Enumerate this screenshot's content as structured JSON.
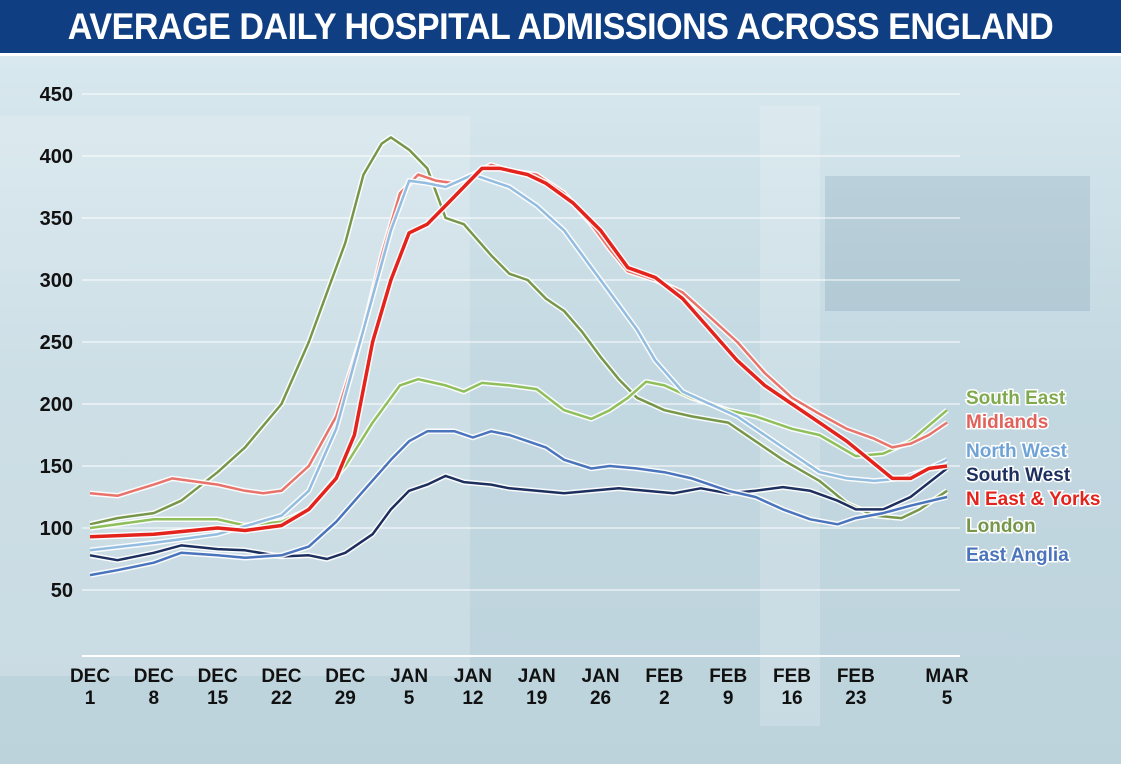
{
  "title": "AVERAGE DAILY HOSPITAL ADMISSIONS ACROSS ENGLAND",
  "chart_data": {
    "type": "line",
    "title": "AVERAGE DAILY HOSPITAL ADMISSIONS ACROSS ENGLAND",
    "xlabel": "",
    "ylabel": "",
    "x_unit": "days since Dec 1",
    "xlim": [
      0,
      94
    ],
    "ylim": [
      50,
      450
    ],
    "grid": true,
    "legend_placement": "right",
    "yticks": [
      50,
      100,
      150,
      200,
      250,
      300,
      350,
      400,
      450
    ],
    "xticks": [
      {
        "day": 0,
        "month": "DEC",
        "date": "1"
      },
      {
        "day": 7,
        "month": "DEC",
        "date": "8"
      },
      {
        "day": 14,
        "month": "DEC",
        "date": "15"
      },
      {
        "day": 21,
        "month": "DEC",
        "date": "22"
      },
      {
        "day": 28,
        "month": "DEC",
        "date": "29"
      },
      {
        "day": 35,
        "month": "JAN",
        "date": "5"
      },
      {
        "day": 42,
        "month": "JAN",
        "date": "12"
      },
      {
        "day": 49,
        "month": "JAN",
        "date": "19"
      },
      {
        "day": 56,
        "month": "JAN",
        "date": "26"
      },
      {
        "day": 63,
        "month": "FEB",
        "date": "2"
      },
      {
        "day": 70,
        "month": "FEB",
        "date": "9"
      },
      {
        "day": 77,
        "month": "FEB",
        "date": "16"
      },
      {
        "day": 84,
        "month": "FEB",
        "date": "23"
      },
      {
        "day": 94,
        "month": "MAR",
        "date": "5"
      }
    ],
    "series": [
      {
        "name": "London",
        "color": "#76974a",
        "width": 2.5,
        "x": [
          0,
          3,
          7,
          10,
          14,
          17,
          21,
          24,
          26,
          28,
          30,
          32,
          33,
          35,
          37,
          39,
          41,
          44,
          46,
          48,
          50,
          52,
          54,
          56,
          58,
          60,
          63,
          66,
          70,
          73,
          76,
          80,
          83,
          86,
          89,
          91,
          94
        ],
        "y": [
          103,
          108,
          112,
          122,
          145,
          165,
          200,
          250,
          290,
          330,
          385,
          410,
          415,
          405,
          390,
          350,
          345,
          320,
          305,
          300,
          285,
          275,
          258,
          238,
          220,
          205,
          195,
          190,
          185,
          170,
          155,
          138,
          120,
          110,
          108,
          115,
          130
        ]
      },
      {
        "name": "South East",
        "color": "#8fbf5a",
        "width": 2.5,
        "x": [
          0,
          7,
          14,
          17,
          21,
          24,
          28,
          31,
          34,
          36,
          39,
          41,
          43,
          46,
          49,
          52,
          55,
          57,
          59,
          61,
          63,
          66,
          70,
          73,
          77,
          80,
          84,
          87,
          90,
          94
        ],
        "y": [
          100,
          107,
          107,
          102,
          105,
          115,
          150,
          185,
          215,
          220,
          215,
          210,
          217,
          215,
          212,
          195,
          188,
          195,
          205,
          218,
          215,
          205,
          195,
          190,
          180,
          175,
          158,
          160,
          170,
          195
        ]
      },
      {
        "name": "Midlands",
        "color": "#e8736b",
        "width": 2.5,
        "x": [
          0,
          3,
          7,
          9,
          12,
          14,
          17,
          19,
          21,
          24,
          27,
          30,
          32,
          34,
          36,
          38,
          40,
          42,
          44,
          46,
          49,
          52,
          55,
          57,
          59,
          62,
          65,
          68,
          71,
          74,
          77,
          80,
          83,
          86,
          88,
          90,
          92,
          94
        ],
        "y": [
          128,
          126,
          135,
          140,
          137,
          135,
          130,
          128,
          130,
          150,
          190,
          260,
          320,
          370,
          385,
          380,
          378,
          385,
          393,
          388,
          385,
          370,
          345,
          325,
          307,
          300,
          290,
          270,
          250,
          225,
          205,
          192,
          180,
          172,
          165,
          168,
          175,
          185
        ]
      },
      {
        "name": "North West",
        "color": "#92bce0",
        "width": 2.5,
        "x": [
          0,
          7,
          14,
          21,
          24,
          27,
          30,
          33,
          35,
          37,
          39,
          42,
          44,
          46,
          49,
          52,
          55,
          57,
          60,
          62,
          65,
          68,
          71,
          74,
          77,
          80,
          83,
          86,
          89,
          92,
          94
        ],
        "y": [
          82,
          88,
          95,
          110,
          130,
          180,
          260,
          340,
          380,
          378,
          375,
          385,
          380,
          375,
          360,
          340,
          310,
          290,
          260,
          235,
          210,
          200,
          190,
          175,
          160,
          145,
          140,
          138,
          140,
          148,
          155
        ]
      },
      {
        "name": "South West",
        "color": "#1c2f5e",
        "width": 2.5,
        "x": [
          0,
          3,
          7,
          10,
          14,
          17,
          21,
          24,
          26,
          28,
          31,
          33,
          35,
          37,
          39,
          41,
          44,
          46,
          49,
          52,
          55,
          58,
          61,
          64,
          67,
          70,
          73,
          76,
          79,
          82,
          84,
          87,
          90,
          94
        ],
        "y": [
          78,
          74,
          80,
          86,
          83,
          82,
          77,
          78,
          75,
          80,
          95,
          115,
          130,
          135,
          142,
          137,
          135,
          132,
          130,
          128,
          130,
          132,
          130,
          128,
          132,
          128,
          130,
          133,
          130,
          122,
          115,
          115,
          125,
          148
        ]
      },
      {
        "name": "N East & Yorks",
        "color": "#e3231c",
        "width": 3.5,
        "x": [
          0,
          7,
          14,
          17,
          21,
          24,
          27,
          29,
          31,
          33,
          35,
          37,
          39,
          41,
          43,
          45,
          48,
          50,
          53,
          56,
          59,
          62,
          65,
          68,
          71,
          74,
          77,
          80,
          83,
          86,
          88,
          90,
          92,
          94
        ],
        "y": [
          93,
          95,
          100,
          98,
          102,
          115,
          140,
          175,
          250,
          300,
          338,
          345,
          360,
          375,
          390,
          390,
          385,
          378,
          362,
          340,
          310,
          302,
          285,
          260,
          235,
          215,
          200,
          185,
          170,
          152,
          140,
          140,
          148,
          150
        ]
      },
      {
        "name": "East Anglia",
        "color": "#4a74bb",
        "width": 2.5,
        "x": [
          0,
          3,
          7,
          10,
          14,
          17,
          21,
          24,
          27,
          30,
          33,
          35,
          37,
          40,
          42,
          44,
          46,
          48,
          50,
          52,
          55,
          57,
          60,
          63,
          66,
          70,
          73,
          76,
          79,
          82,
          84,
          87,
          90,
          94
        ],
        "y": [
          62,
          66,
          72,
          80,
          78,
          76,
          78,
          85,
          105,
          130,
          155,
          170,
          178,
          178,
          173,
          178,
          175,
          170,
          165,
          155,
          148,
          150,
          148,
          145,
          140,
          130,
          125,
          115,
          107,
          103,
          108,
          112,
          118,
          125
        ]
      }
    ],
    "legend": [
      {
        "label": "South East",
        "color": "#7fa94d"
      },
      {
        "label": "Midlands",
        "color": "#e0625b"
      },
      {
        "label": "North West",
        "color": "#6fa3d6"
      },
      {
        "label": "South West",
        "color": "#1c2f5e"
      },
      {
        "label": "N East & Yorks",
        "color": "#e3231c"
      },
      {
        "label": "London",
        "color": "#76974a"
      },
      {
        "label": "East Anglia",
        "color": "#4a74bb"
      }
    ]
  }
}
